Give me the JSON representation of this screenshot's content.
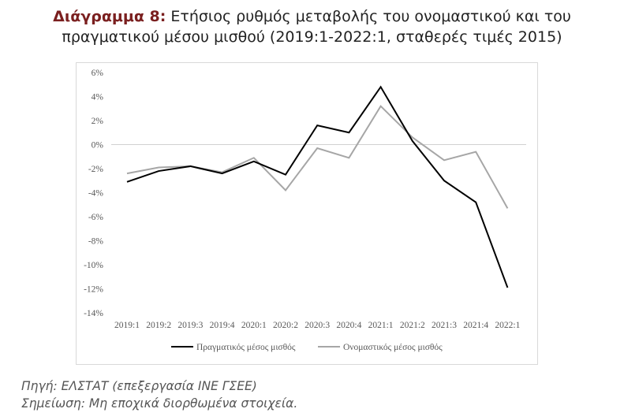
{
  "title": {
    "lead": "Διάγραμμα 8:",
    "line1": " Ετήσιος ρυθμός μεταβολής του ονομαστικού και του",
    "line2": "πραγματικού μέσου μισθού (2019:1-2022:1, σταθερές τιμές 2015)"
  },
  "chart_data": {
    "type": "line",
    "categories": [
      "2019:1",
      "2019:2",
      "2019:3",
      "2019:4",
      "2020:1",
      "2020:2",
      "2020:3",
      "2020:4",
      "2021:1",
      "2021:2",
      "2021:3",
      "2021:4",
      "2022:1"
    ],
    "yticks": [
      "6%",
      "4%",
      "2%",
      "0%",
      "-2%",
      "-4%",
      "-6%",
      "-8%",
      "-10%",
      "-12%",
      "-14%"
    ],
    "ylim": [
      -14,
      6
    ],
    "grid": false,
    "legend_position": "bottom",
    "series": [
      {
        "name": "Πραγματικός μέσος μισθός",
        "color": "#000000",
        "values": [
          -3.1,
          -2.2,
          -1.8,
          -2.4,
          -1.4,
          -2.5,
          1.6,
          1.0,
          4.8,
          0.3,
          -3.0,
          -4.8,
          -11.9
        ]
      },
      {
        "name": "Ονομαστικός μέσος μισθός",
        "color": "#a6a6a6",
        "values": [
          -2.4,
          -1.9,
          -1.8,
          -2.3,
          -1.1,
          -3.8,
          -0.3,
          -1.1,
          3.2,
          0.6,
          -1.3,
          -0.6,
          -5.3
        ]
      }
    ]
  },
  "footer": {
    "source": "Πηγή:  ΕΛΣΤΑΤ (επεξεργασία ΙΝΕ ΓΣΕΕ)",
    "note": "Σημείωση: Μη εποχικά διορθωμένα στοιχεία."
  }
}
